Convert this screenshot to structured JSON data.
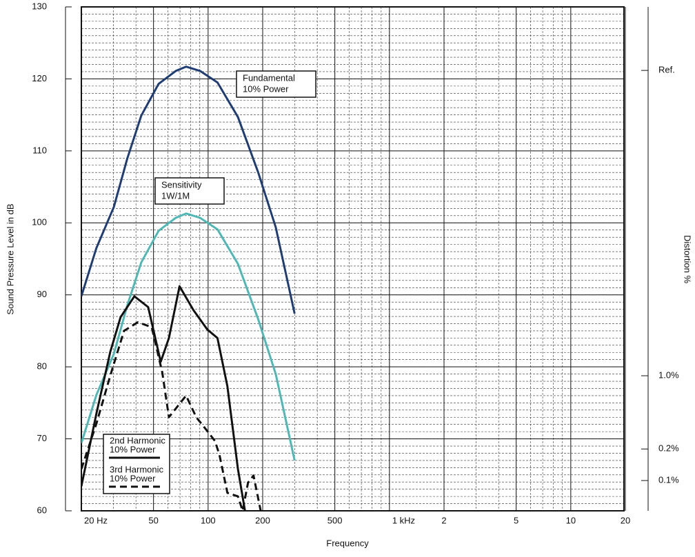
{
  "chart_data": {
    "type": "line",
    "x_label": "Frequency",
    "y_label": "Sound Pressure Level in dB",
    "y2_label": "Distortion %",
    "xscale": "log",
    "xlim": [
      20,
      20000
    ],
    "xticks": [
      {
        "value": 20,
        "label": "20 Hz"
      },
      50,
      100,
      200,
      500,
      {
        "value": 1000,
        "label": "1 kHz"
      },
      {
        "value": 2000,
        "label": "2"
      },
      {
        "value": 5000,
        "label": "5"
      },
      {
        "value": 10000,
        "label": "10"
      },
      {
        "value": 20000,
        "label": "20"
      }
    ],
    "ylim": [
      60,
      130
    ],
    "yticks": [
      60,
      70,
      80,
      90,
      100,
      110,
      120,
      130
    ],
    "y2scale": "log",
    "y2lim": [
      0.0514,
      3311
    ],
    "y2ticks": [
      {
        "value": 0.1,
        "label": "0.1%"
      },
      {
        "value": 0.2,
        "label": "0.2%"
      },
      {
        "value": 1,
        "label": "1.0%"
      },
      {
        "value": 820,
        "label": "Ref."
      }
    ],
    "grid": true,
    "series": [
      {
        "name": "Fundamental",
        "name_line2": "10% Power",
        "legend": false,
        "color": "#1f3d74",
        "dash": false,
        "x": [
          20,
          24.2,
          30.2,
          35.8,
          42.8,
          53.3,
          66.3,
          75.6,
          90.3,
          112.6,
          146,
          189,
          236,
          300
        ],
        "values": [
          89.8,
          96.5,
          102.2,
          108.9,
          114.9,
          119.3,
          121.1,
          121.7,
          121.1,
          119.5,
          114.7,
          107.0,
          99.4,
          87.4
        ]
      },
      {
        "name": "Sensitivity",
        "name_line2": "1W/1M",
        "legend": false,
        "color": "#4fb8b5",
        "dash": false,
        "x": [
          20,
          24.2,
          30.2,
          35.8,
          42.8,
          53.3,
          66.3,
          75.6,
          90.3,
          112.6,
          146,
          189,
          236,
          300
        ],
        "values": [
          69.4,
          76.1,
          81.8,
          88.5,
          94.5,
          98.9,
          100.7,
          101.3,
          100.7,
          99.1,
          94.3,
          86.6,
          79.0,
          67.0
        ]
      },
      {
        "name": "2nd Harmonic",
        "name_line2": "10% Power",
        "legend": true,
        "color": "#111111",
        "dash": false,
        "x": [
          20,
          24.2,
          28.9,
          32.9,
          39.2,
          46.7,
          54.8,
          60.8,
          69.6,
          82.9,
          98.8,
          112.6,
          127.8,
          146,
          159.7
        ],
        "values": [
          63.4,
          73.5,
          82.1,
          86.9,
          89.8,
          88.3,
          80.7,
          84.0,
          91.2,
          87.9,
          85.2,
          84.0,
          77.3,
          65.8,
          60.0
        ]
      },
      {
        "name": "3rd Harmonic",
        "name_line2": "10% Power",
        "legend": true,
        "color": "#111111",
        "dash": true,
        "x": [
          20,
          24.2,
          28.9,
          34.4,
          41.0,
          48.9,
          55.9,
          60.8,
          75.6,
          86,
          98.8,
          109,
          115.4,
          127.8,
          146,
          155,
          166,
          178,
          195
        ],
        "values": [
          65.8,
          72.1,
          78.8,
          85.0,
          86.2,
          85.5,
          79.2,
          73.0,
          76.0,
          73.0,
          71.1,
          69.7,
          67.8,
          62.5,
          62.0,
          60.0,
          63.9,
          64.9,
          60.0
        ]
      }
    ]
  }
}
